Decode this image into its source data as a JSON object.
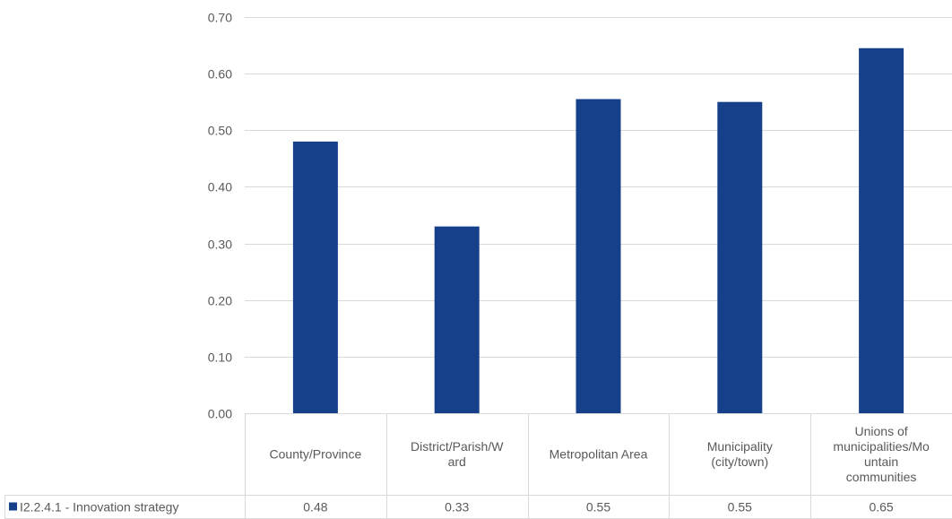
{
  "chart_data": {
    "type": "bar",
    "categories": [
      "County/Province",
      "District/Parish/W\nard",
      "Metropolitan Area",
      "Municipality\n(city/town)",
      "Unions of\nmunicipalities/Mo\nuntain\ncommunities"
    ],
    "series": [
      {
        "name": "I2.2.4.1 - Innovation strategy",
        "values": [
          0.48,
          0.33,
          0.555,
          0.55,
          0.645
        ],
        "labels": [
          "0.48",
          "0.33",
          "0.55",
          "0.55",
          "0.65"
        ],
        "color": "#17408b"
      }
    ],
    "ylim": [
      0,
      0.7
    ],
    "yticks": [
      0,
      0.1,
      0.2,
      0.3,
      0.4,
      0.5,
      0.6,
      0.7
    ],
    "ytick_labels": [
      "0.00",
      "0.10",
      "0.20",
      "0.30",
      "0.40",
      "0.50",
      "0.60",
      "0.70"
    ],
    "grid": true,
    "legend": "data-table",
    "colors": {
      "bar": "#17408b",
      "grid": "#d9d9d9",
      "table_border": "#d9d9d9",
      "text": "#595959"
    }
  }
}
